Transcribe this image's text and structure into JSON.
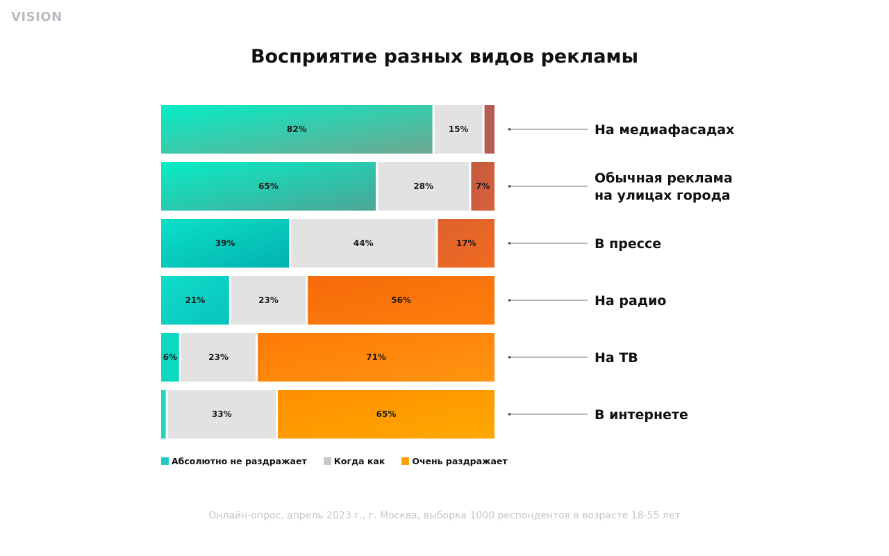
{
  "logo": "VISION",
  "title": "Восприятие разных видов рекламы",
  "footnote": "Онлайн-опрос, апрель 2023 г., г. Москва, выборка 1000 респондентов в возрасте 18-55 лет",
  "legend": [
    {
      "label": "Абсолютно не раздражает",
      "color": "#1ecfc0"
    },
    {
      "label": "Когда как",
      "color": "#c8c8c8"
    },
    {
      "label": "Очень раздражает",
      "color": "#ffa000"
    }
  ],
  "chart_data": {
    "type": "bar",
    "orientation": "horizontal",
    "stacked": true,
    "percent": true,
    "title": "Восприятие разных видов рекламы",
    "xlabel": "",
    "ylabel": "",
    "xlim": [
      0,
      100
    ],
    "grid": false,
    "legend_position": "bottom-left",
    "categories": [
      "На медиафасадах",
      "Обычная реклама на улицах города",
      "В прессе",
      "На радио",
      "На ТВ",
      "В интернете"
    ],
    "category_lines": [
      [
        "На медиафасадах"
      ],
      [
        "Обычная реклама",
        "на улицах города"
      ],
      [
        "В прессе"
      ],
      [
        "На радио"
      ],
      [
        "На ТВ"
      ],
      [
        "В интернете"
      ]
    ],
    "series": [
      {
        "name": "Абсолютно не раздражает",
        "values": [
          82,
          65,
          39,
          21,
          6,
          2
        ],
        "labels": [
          "82%",
          "65%",
          "39%",
          "21%",
          "6%",
          ""
        ]
      },
      {
        "name": "Когда как",
        "values": [
          15,
          28,
          44,
          23,
          23,
          33
        ],
        "labels": [
          "15%",
          "28%",
          "44%",
          "23%",
          "23%",
          "33%"
        ]
      },
      {
        "name": "Очень раздражает",
        "values": [
          3,
          7,
          17,
          56,
          71,
          65
        ],
        "labels": [
          "",
          "7%",
          "17%",
          "56%",
          "71%",
          "65%"
        ]
      }
    ],
    "segment_colors": [
      [
        "#08e8c4",
        "#8a9f86"
      ],
      [
        "#e2e2e2",
        "#e2e2e2"
      ],
      [
        "#b5584e",
        "#ffa000"
      ]
    ],
    "row_colors": {
      "calm": [
        [
          "#05edc6",
          "#6ea790"
        ],
        [
          "#05edc6",
          "#4da596"
        ],
        [
          "#0be0c9",
          "#03b2ae"
        ],
        [
          "#10ddc9",
          "#08c3bd"
        ],
        [
          "#0ed9c0",
          "#0ed9c0"
        ],
        [
          "#22d3bd",
          "#22d3bd"
        ]
      ],
      "neutral": [
        "#e2e2e2",
        "#e2e2e2",
        "#e2e2e2",
        "#e2e2e2",
        "#e2e2e2",
        "#e2e2e2"
      ],
      "annoyed": [
        [
          "#b65c52",
          "#b65c52"
        ],
        [
          "#c45a3f",
          "#d8613a"
        ],
        [
          "#dc622e",
          "#f26b20"
        ],
        [
          "#f56a0a",
          "#ff7f0c"
        ],
        [
          "#ff7a06",
          "#ff9510"
        ],
        [
          "#ff8f00",
          "#ffa800"
        ]
      ]
    }
  }
}
